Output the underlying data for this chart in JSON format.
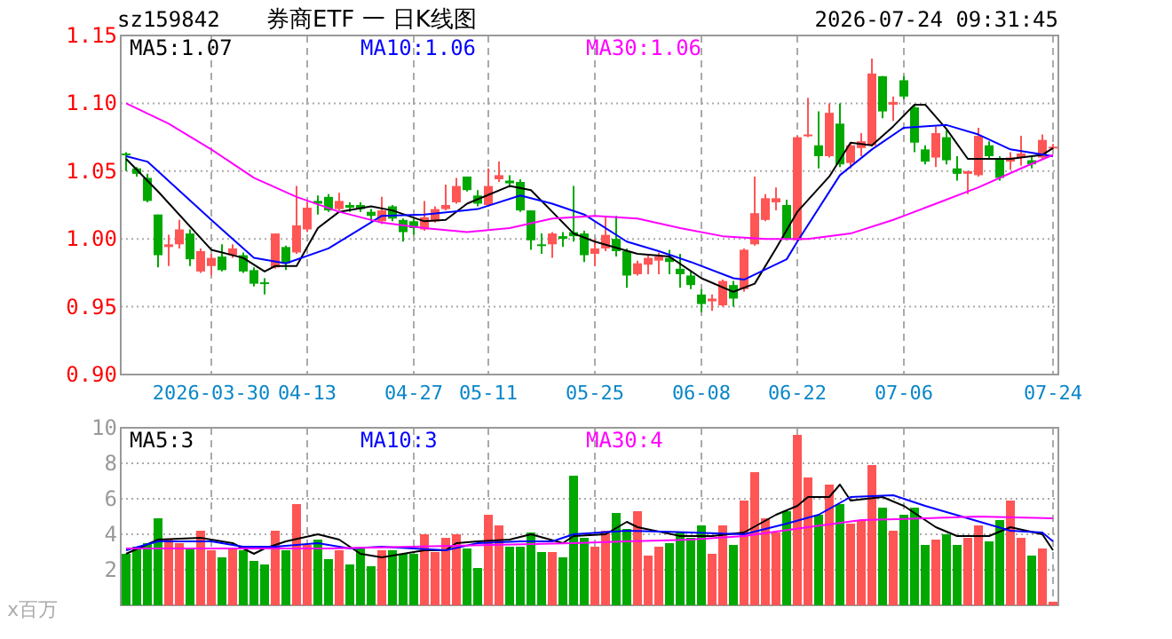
{
  "chart_data": [
    {
      "type": "candlestick",
      "title": "券商ETF 一 日K线图",
      "annotations": [
        "sz159842",
        "2026-07-24 09:31:45"
      ],
      "categories": [
        null,
        null,
        null,
        null,
        null,
        null,
        null,
        null,
        "2026-03-30",
        null,
        null,
        null,
        null,
        null,
        null,
        null,
        null,
        "04-13",
        null,
        null,
        null,
        null,
        null,
        null,
        null,
        null,
        null,
        "04-27",
        null,
        null,
        null,
        null,
        null,
        null,
        "05-11",
        null,
        null,
        null,
        null,
        null,
        null,
        null,
        null,
        null,
        "05-25",
        null,
        null,
        null,
        null,
        null,
        null,
        null,
        null,
        null,
        "06-08",
        null,
        null,
        null,
        null,
        null,
        null,
        null,
        null,
        "06-22",
        null,
        null,
        null,
        null,
        null,
        null,
        null,
        null,
        null,
        "07-06",
        null,
        null,
        null,
        null,
        null,
        null,
        null,
        null,
        null,
        null,
        null,
        null,
        null,
        "07-24"
      ],
      "ohlc": [
        [
          1.063,
          1.064,
          1.05,
          1.062
        ],
        [
          1.052,
          1.053,
          1.046,
          1.048
        ],
        [
          1.045,
          1.048,
          1.027,
          1.028
        ],
        [
          1.018,
          1.018,
          0.979,
          0.988
        ],
        [
          0.994,
          1.003,
          0.98,
          0.996
        ],
        [
          0.996,
          1.014,
          0.993,
          1.007
        ],
        [
          1.004,
          1.007,
          0.98,
          0.985
        ],
        [
          0.976,
          0.993,
          0.975,
          0.991
        ],
        [
          0.98,
          0.989,
          0.973,
          0.986
        ],
        [
          0.987,
          0.996,
          0.976,
          0.977
        ],
        [
          0.988,
          0.996,
          0.986,
          0.993
        ],
        [
          0.988,
          0.99,
          0.975,
          0.976
        ],
        [
          0.977,
          0.979,
          0.965,
          0.967
        ],
        [
          0.968,
          0.971,
          0.959,
          0.967
        ],
        [
          0.979,
          1.004,
          0.978,
          1.004
        ],
        [
          0.994,
          0.995,
          0.977,
          0.982
        ],
        [
          0.99,
          1.039,
          0.989,
          1.01
        ],
        [
          1.007,
          1.027,
          1.005,
          1.023
        ],
        [
          1.028,
          1.032,
          1.018,
          1.026
        ],
        [
          1.031,
          1.033,
          1.02,
          1.021
        ],
        [
          1.022,
          1.034,
          1.021,
          1.028
        ],
        [
          1.025,
          1.027,
          1.02,
          1.023
        ],
        [
          1.025,
          1.027,
          1.02,
          1.022
        ],
        [
          1.02,
          1.022,
          1.013,
          1.017
        ],
        [
          1.013,
          1.031,
          1.011,
          1.021
        ],
        [
          1.024,
          1.025,
          1.013,
          1.015
        ],
        [
          1.014,
          1.015,
          0.998,
          1.005
        ],
        [
          1.013,
          1.015,
          1.003,
          1.008
        ],
        [
          1.007,
          1.028,
          1.006,
          1.016
        ],
        [
          1.013,
          1.024,
          1.012,
          1.022
        ],
        [
          1.022,
          1.04,
          1.021,
          1.025
        ],
        [
          1.027,
          1.045,
          1.026,
          1.039
        ],
        [
          1.046,
          1.046,
          1.035,
          1.036
        ],
        [
          1.032,
          1.036,
          1.024,
          1.026
        ],
        [
          1.025,
          1.052,
          1.024,
          1.039
        ],
        [
          1.044,
          1.057,
          1.042,
          1.047
        ],
        [
          1.043,
          1.047,
          1.038,
          1.041
        ],
        [
          1.042,
          1.044,
          1.02,
          1.021
        ],
        [
          1.021,
          1.021,
          0.992,
          0.999
        ],
        [
          0.996,
          1.004,
          0.989,
          0.995
        ],
        [
          0.996,
          1.005,
          0.986,
          1.004
        ],
        [
          1.002,
          1.005,
          0.994,
          1.0
        ],
        [
          1.005,
          1.039,
          0.998,
          1.002
        ],
        [
          1.004,
          1.006,
          0.983,
          0.988
        ],
        [
          0.989,
          1.0,
          0.98,
          0.993
        ],
        [
          0.993,
          1.017,
          0.991,
          1.003
        ],
        [
          1.0,
          1.017,
          0.987,
          0.991
        ],
        [
          0.991,
          0.993,
          0.964,
          0.973
        ],
        [
          0.974,
          0.984,
          0.973,
          0.982
        ],
        [
          0.981,
          0.989,
          0.974,
          0.986
        ],
        [
          0.984,
          0.99,
          0.974,
          0.987
        ],
        [
          0.986,
          0.992,
          0.974,
          0.983
        ],
        [
          0.978,
          0.989,
          0.964,
          0.974
        ],
        [
          0.973,
          0.976,
          0.963,
          0.966
        ],
        [
          0.959,
          0.963,
          0.946,
          0.952
        ],
        [
          0.954,
          0.959,
          0.947,
          0.956
        ],
        [
          0.951,
          0.97,
          0.95,
          0.969
        ],
        [
          0.966,
          0.969,
          0.95,
          0.956
        ],
        [
          0.963,
          0.993,
          0.961,
          0.992
        ],
        [
          0.996,
          1.046,
          0.995,
          1.019
        ],
        [
          1.014,
          1.033,
          1.013,
          1.03
        ],
        [
          1.027,
          1.038,
          1.021,
          1.03
        ],
        [
          1.025,
          1.029,
          0.999,
          1.0
        ],
        [
          0.999,
          1.076,
          0.998,
          1.075
        ],
        [
          1.076,
          1.104,
          1.075,
          1.077
        ],
        [
          1.069,
          1.094,
          1.052,
          1.061
        ],
        [
          1.061,
          1.1,
          1.06,
          1.093
        ],
        [
          1.085,
          1.1,
          1.053,
          1.055
        ],
        [
          1.056,
          1.071,
          1.052,
          1.069
        ],
        [
          1.067,
          1.078,
          1.061,
          1.072
        ],
        [
          1.069,
          1.133,
          1.068,
          1.122
        ],
        [
          1.12,
          1.12,
          1.089,
          1.094
        ],
        [
          1.099,
          1.105,
          1.087,
          1.101
        ],
        [
          1.117,
          1.12,
          1.103,
          1.105
        ],
        [
          1.097,
          1.099,
          1.064,
          1.071
        ],
        [
          1.066,
          1.069,
          1.055,
          1.057
        ],
        [
          1.06,
          1.083,
          1.053,
          1.078
        ],
        [
          1.075,
          1.08,
          1.055,
          1.058
        ],
        [
          1.052,
          1.061,
          1.043,
          1.048
        ],
        [
          1.048,
          1.05,
          1.033,
          1.05
        ],
        [
          1.047,
          1.082,
          1.046,
          1.076
        ],
        [
          1.069,
          1.072,
          1.059,
          1.061
        ],
        [
          1.059,
          1.061,
          1.043,
          1.045
        ],
        [
          1.057,
          1.064,
          1.051,
          1.06
        ],
        [
          1.06,
          1.076,
          1.054,
          1.063
        ],
        [
          1.058,
          1.061,
          1.052,
          1.055
        ],
        [
          1.06,
          1.077,
          1.059,
          1.073
        ],
        [
          1.067,
          1.07,
          1.066,
          1.068
        ]
      ],
      "colors": [
        "#00a800",
        "#00a800",
        "#00a800",
        "#00a800",
        "#ff5555",
        "#ff5555",
        "#00a800",
        "#ff5555",
        "#ff5555",
        "#00a800",
        "#ff5555",
        "#00a800",
        "#00a800",
        "#00a800",
        "#ff5555",
        "#00a800",
        "#ff5555",
        "#ff5555",
        "#00a800",
        "#00a800",
        "#ff5555",
        "#00a800",
        "#00a800",
        "#00a800",
        "#ff5555",
        "#00a800",
        "#00a800",
        "#00a800",
        "#ff5555",
        "#ff5555",
        "#ff5555",
        "#ff5555",
        "#00a800",
        "#00a800",
        "#ff5555",
        "#ff5555",
        "#00a800",
        "#00a800",
        "#00a800",
        "#00a800",
        "#ff5555",
        "#00a800",
        "#00a800",
        "#00a800",
        "#ff5555",
        "#ff5555",
        "#00a800",
        "#00a800",
        "#ff5555",
        "#ff5555",
        "#ff5555",
        "#00a800",
        "#00a800",
        "#00a800",
        "#00a800",
        "#ff5555",
        "#ff5555",
        "#00a800",
        "#ff5555",
        "#ff5555",
        "#ff5555",
        "#ff5555",
        "#00a800",
        "#ff5555",
        "#ff5555",
        "#00a800",
        "#ff5555",
        "#00a800",
        "#ff5555",
        "#ff5555",
        "#ff5555",
        "#00a800",
        "#ff5555",
        "#00a800",
        "#00a800",
        "#00a800",
        "#ff5555",
        "#00a800",
        "#00a800",
        "#ff5555",
        "#ff5555",
        "#00a800",
        "#00a800",
        "#ff5555",
        "#ff5555",
        "#00a800",
        "#ff5555",
        "#ff5555"
      ],
      "series": [
        {
          "name": "MA5:1.07",
          "type": "line",
          "color": "#000000",
          "values": [
            1.059,
            null,
            null,
            1.035,
            null,
            null,
            null,
            null,
            0.992,
            null,
            null,
            0.986,
            null,
            0.976,
            0.98,
            null,
            0.98,
            null,
            1.008,
            null,
            1.02,
            null,
            null,
            1.024,
            null,
            1.021,
            null,
            null,
            1.013,
            null,
            1.014,
            null,
            1.026,
            null,
            null,
            null,
            1.039,
            null,
            1.036,
            null,
            1.02,
            null,
            1.004,
            null,
            0.998,
            null,
            null,
            null,
            0.989,
            null,
            null,
            0.987,
            null,
            null,
            0.971,
            null,
            null,
            0.961,
            null,
            0.967,
            null,
            0.993,
            null,
            1.02,
            null,
            null,
            1.046,
            null,
            1.071,
            null,
            1.069,
            null,
            1.083,
            null,
            1.099,
            1.099,
            null,
            1.081,
            null,
            1.059,
            null,
            1.059,
            null,
            1.059,
            null,
            null,
            1.062,
            1.067
          ]
        },
        {
          "name": "MA10:1.06",
          "type": "line",
          "color": "#0000ff",
          "values": [
            1.061,
            null,
            1.057,
            null,
            null,
            null,
            null,
            null,
            1.014,
            null,
            null,
            null,
            0.986,
            null,
            null,
            0.982,
            null,
            null,
            null,
            0.993,
            null,
            null,
            null,
            null,
            1.017,
            null,
            null,
            null,
            1.018,
            null,
            null,
            null,
            null,
            1.022,
            null,
            null,
            null,
            1.032,
            null,
            null,
            1.026,
            null,
            null,
            1.018,
            null,
            null,
            null,
            0.998,
            null,
            null,
            0.991,
            null,
            null,
            0.983,
            null,
            null,
            null,
            0.971,
            0.97,
            null,
            null,
            null,
            0.985,
            0.998,
            null,
            null,
            null,
            1.047,
            null,
            null,
            1.066,
            null,
            null,
            1.082,
            null,
            null,
            null,
            1.084,
            null,
            null,
            1.077,
            null,
            null,
            1.066,
            null,
            null,
            null,
            1.061
          ]
        },
        {
          "name": "MA30:1.06",
          "type": "line",
          "color": "#ff00ff",
          "values": [
            1.1,
            null,
            null,
            null,
            1.085,
            null,
            null,
            null,
            1.066,
            null,
            null,
            null,
            1.045,
            null,
            null,
            null,
            1.031,
            null,
            null,
            null,
            1.02,
            null,
            null,
            null,
            1.012,
            null,
            null,
            null,
            1.008,
            null,
            null,
            null,
            1.005,
            null,
            null,
            null,
            1.008,
            null,
            null,
            null,
            1.015,
            null,
            null,
            null,
            1.017,
            null,
            null,
            null,
            1.015,
            null,
            null,
            null,
            1.008,
            null,
            null,
            null,
            1.002,
            null,
            null,
            null,
            1.0,
            null,
            null,
            null,
            1.0,
            null,
            null,
            null,
            1.004,
            null,
            null,
            null,
            1.014,
            null,
            null,
            null,
            1.026,
            null,
            null,
            null,
            1.038,
            null,
            null,
            null,
            1.052,
            null,
            null,
            1.062
          ]
        }
      ],
      "ylim": [
        0.9,
        1.15
      ],
      "yticks": [
        {
          "value": 0.9,
          "label": "0.90"
        },
        {
          "value": 0.95,
          "label": "0.95"
        },
        {
          "value": 1.0,
          "label": "1.00"
        },
        {
          "value": 1.05,
          "label": "1.05"
        },
        {
          "value": 1.1,
          "label": "1.10"
        },
        {
          "value": 1.15,
          "label": "1.15"
        }
      ],
      "grid": true,
      "legend": "top"
    },
    {
      "type": "bar",
      "ylabel": "x百万",
      "categories": [
        null,
        null,
        null,
        null,
        null,
        null,
        null,
        null,
        null,
        null,
        null,
        null,
        null,
        null,
        null,
        null,
        null,
        null,
        null,
        null,
        null,
        null,
        null,
        null,
        null,
        null,
        null,
        null,
        null,
        null,
        null,
        null,
        null,
        null,
        null,
        null,
        null,
        null,
        null,
        null,
        null,
        null,
        null,
        null,
        null,
        null,
        null,
        null,
        null,
        null,
        null,
        null,
        null,
        null,
        null,
        null,
        null,
        null,
        null,
        null,
        null,
        null,
        null,
        null,
        null,
        null,
        null,
        null,
        null,
        null,
        null,
        null,
        null,
        null,
        null,
        null,
        null,
        null,
        null,
        null,
        null,
        null,
        null,
        null,
        null,
        null,
        null,
        null
      ],
      "values": [
        2.9,
        3.3,
        3.5,
        4.9,
        3.7,
        3.5,
        3.2,
        4.2,
        3.1,
        2.7,
        3.2,
        3.1,
        2.5,
        2.3,
        4.2,
        3.1,
        5.7,
        3.4,
        3.7,
        2.6,
        3.1,
        2.3,
        3.2,
        2.2,
        3.1,
        3.1,
        2.9,
        2.9,
        4.0,
        3.0,
        3.8,
        4.0,
        3.2,
        2.1,
        5.1,
        4.5,
        3.3,
        3.3,
        4.1,
        3.0,
        3.0,
        2.7,
        7.3,
        3.8,
        3.3,
        4.2,
        5.2,
        4.3,
        5.3,
        2.8,
        3.3,
        3.5,
        4.1,
        3.8,
        4.5,
        2.9,
        4.5,
        3.4,
        5.9,
        7.5,
        4.9,
        4.1,
        5.3,
        9.6,
        7.2,
        5.1,
        6.8,
        5.7,
        4.6,
        4.8,
        7.9,
        5.5,
        4.2,
        5.1,
        5.5,
        3.4,
        3.7,
        4.0,
        3.4,
        3.8,
        4.5,
        3.6,
        4.8,
        5.9,
        3.8,
        2.8,
        3.2,
        0.2
      ],
      "colors": [
        "#00a800",
        "#00a800",
        "#00a800",
        "#00a800",
        "#ff5555",
        "#ff5555",
        "#00a800",
        "#ff5555",
        "#ff5555",
        "#00a800",
        "#ff5555",
        "#00a800",
        "#00a800",
        "#00a800",
        "#ff5555",
        "#00a800",
        "#ff5555",
        "#ff5555",
        "#00a800",
        "#00a800",
        "#ff5555",
        "#00a800",
        "#00a800",
        "#00a800",
        "#ff5555",
        "#00a800",
        "#00a800",
        "#00a800",
        "#ff5555",
        "#ff5555",
        "#ff5555",
        "#ff5555",
        "#00a800",
        "#00a800",
        "#ff5555",
        "#ff5555",
        "#00a800",
        "#00a800",
        "#00a800",
        "#00a800",
        "#ff5555",
        "#00a800",
        "#00a800",
        "#00a800",
        "#ff5555",
        "#ff5555",
        "#00a800",
        "#00a800",
        "#ff5555",
        "#ff5555",
        "#ff5555",
        "#00a800",
        "#00a800",
        "#00a800",
        "#00a800",
        "#ff5555",
        "#ff5555",
        "#00a800",
        "#ff5555",
        "#ff5555",
        "#ff5555",
        "#ff5555",
        "#00a800",
        "#ff5555",
        "#ff5555",
        "#00a800",
        "#ff5555",
        "#00a800",
        "#ff5555",
        "#ff5555",
        "#ff5555",
        "#00a800",
        "#ff5555",
        "#00a800",
        "#00a800",
        "#00a800",
        "#ff5555",
        "#00a800",
        "#00a800",
        "#ff5555",
        "#ff5555",
        "#00a800",
        "#00a800",
        "#ff5555",
        "#ff5555",
        "#00a800",
        "#ff5555",
        "#ff5555"
      ],
      "series": [
        {
          "name": "MA5:3",
          "type": "line",
          "color": "#000000",
          "values": [
            2.9,
            null,
            null,
            3.7,
            null,
            null,
            null,
            3.8,
            null,
            null,
            3.5,
            null,
            2.9,
            3.2,
            null,
            3.6,
            null,
            null,
            4.0,
            null,
            3.7,
            null,
            2.9,
            null,
            2.7,
            null,
            null,
            null,
            3.1,
            null,
            3.1,
            3.5,
            null,
            3.6,
            null,
            null,
            3.7,
            null,
            4.0,
            null,
            null,
            3.5,
            3.9,
            null,
            null,
            4.0,
            null,
            4.7,
            4.4,
            null,
            null,
            null,
            3.9,
            null,
            null,
            3.9,
            null,
            null,
            4.1,
            null,
            null,
            5.1,
            null,
            5.6,
            6.1,
            null,
            6.1,
            6.8,
            5.9,
            null,
            null,
            6.1,
            null,
            5.6,
            null,
            null,
            4.4,
            null,
            3.9,
            null,
            null,
            3.9,
            null,
            4.4,
            null,
            null,
            4.0,
            3.1
          ]
        },
        {
          "name": "MA10:3",
          "type": "line",
          "color": "#0000ff",
          "values": [
            3.1,
            null,
            null,
            3.6,
            null,
            null,
            null,
            null,
            3.6,
            null,
            null,
            3.3,
            null,
            null,
            3.3,
            null,
            null,
            null,
            3.5,
            null,
            null,
            3.2,
            null,
            null,
            3.3,
            null,
            null,
            null,
            null,
            null,
            3.1,
            null,
            null,
            3.5,
            null,
            null,
            null,
            3.6,
            null,
            null,
            3.6,
            null,
            4.0,
            null,
            null,
            null,
            null,
            4.2,
            null,
            null,
            null,
            null,
            null,
            4.1,
            null,
            null,
            null,
            null,
            4.0,
            null,
            null,
            null,
            4.6,
            null,
            null,
            5.1,
            null,
            null,
            6.1,
            null,
            null,
            null,
            6.2,
            null,
            null,
            5.6,
            null,
            null,
            null,
            4.9,
            null,
            null,
            null,
            4.2,
            null,
            null,
            4.1,
            3.6
          ]
        },
        {
          "name": "MA30:4",
          "type": "line",
          "color": "#ff00ff",
          "values": [
            3.2,
            null,
            null,
            null,
            null,
            null,
            null,
            null,
            null,
            null,
            null,
            null,
            null,
            null,
            null,
            null,
            null,
            null,
            null,
            3.2,
            null,
            null,
            null,
            null,
            null,
            null,
            null,
            null,
            null,
            null,
            null,
            null,
            null,
            null,
            null,
            null,
            null,
            null,
            null,
            null,
            null,
            null,
            3.5,
            null,
            null,
            null,
            null,
            3.6,
            null,
            null,
            null,
            null,
            null,
            3.7,
            null,
            null,
            null,
            null,
            3.9,
            null,
            null,
            null,
            null,
            null,
            4.4,
            null,
            null,
            null,
            null,
            4.8,
            null,
            null,
            null,
            null,
            null,
            4.9,
            null,
            null,
            null,
            null,
            5.0,
            null,
            null,
            null,
            null,
            null,
            null,
            4.9
          ]
        }
      ],
      "ylim": [
        0,
        10
      ],
      "yticks": [
        2,
        4,
        6,
        8,
        10
      ],
      "grid": true,
      "legend": "top",
      "tick_labels": "y"
    }
  ]
}
